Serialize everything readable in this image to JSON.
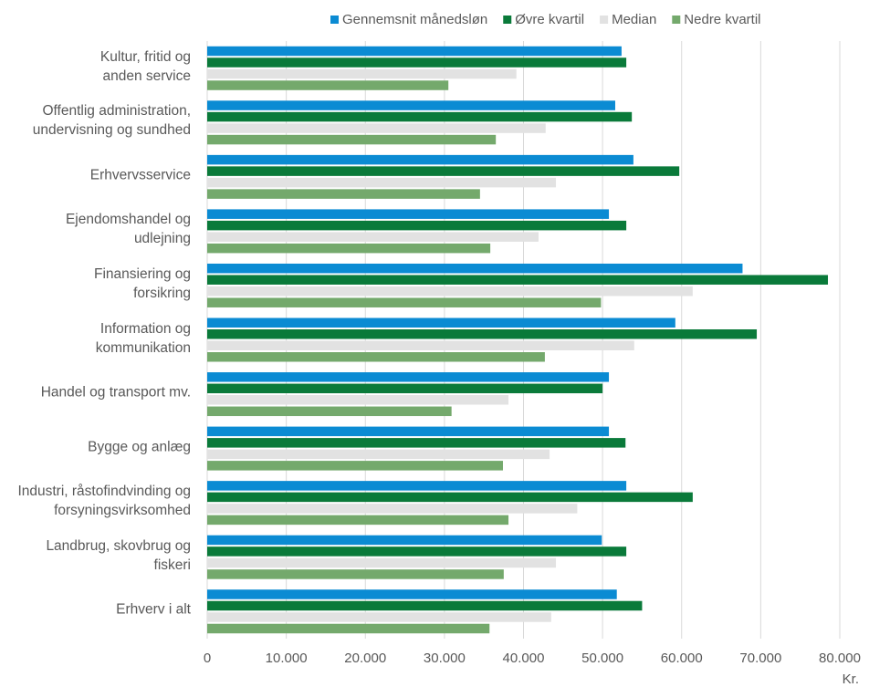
{
  "chart_data": {
    "type": "hbar",
    "categories": [
      "Kultur, fritid og\nanden service",
      "Offentlig administration,\nundervisning og sundhed",
      "Erhvervsservice",
      "Ejendomshandel og\nudlejning",
      "Finansiering og\nforsikring",
      "Information og\nkommunikation",
      "Handel og transport mv.",
      "Bygge og anlæg",
      "Industri, råstofindvinding og\nforsyningsvirksomhed",
      "Landbrug, skovbrug og\nfiskeri",
      "Erhverv i alt"
    ],
    "series": [
      {
        "name": "Gennemsnit månedsløn",
        "color": "#0b8bd3",
        "values": [
          52400,
          51600,
          53900,
          50800,
          67700,
          59200,
          50800,
          50800,
          53000,
          49900,
          51800
        ]
      },
      {
        "name": "Øvre kvartil",
        "color": "#0a7a3a",
        "values": [
          53000,
          53700,
          59700,
          53000,
          78500,
          69500,
          50000,
          52900,
          61400,
          53000,
          55000
        ]
      },
      {
        "name": "Median",
        "color": "#e2e2e2",
        "values": [
          39100,
          42800,
          44100,
          41900,
          61400,
          54000,
          38100,
          43300,
          46800,
          44100,
          43500
        ]
      },
      {
        "name": "Nedre kvartil",
        "color": "#74a96c",
        "values": [
          30500,
          36500,
          34500,
          35800,
          49800,
          42700,
          30900,
          37400,
          38100,
          37500,
          35700
        ]
      }
    ],
    "xlim": [
      0,
      80000
    ],
    "xticks": [
      0,
      {
        "value": 10000,
        "label": "10.000"
      },
      {
        "value": 20000,
        "label": "20.000"
      },
      {
        "value": 30000,
        "label": "30.000"
      },
      {
        "value": 40000,
        "label": "40.000"
      },
      {
        "value": 50000,
        "label": "50.000"
      },
      {
        "value": 60000,
        "label": "60.000"
      },
      {
        "value": 70000,
        "label": "70.000"
      },
      {
        "value": 80000,
        "label": "80.000"
      }
    ],
    "x_label": "Kr.",
    "grid": true,
    "legend": "top"
  }
}
